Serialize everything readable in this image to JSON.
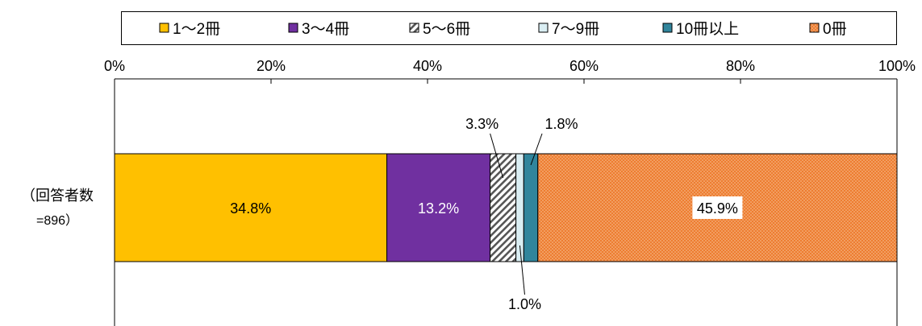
{
  "chart_data": {
    "type": "bar",
    "orientation": "horizontal",
    "stacked": true,
    "percent_scale": true,
    "category_label_line1": "（回答者数",
    "category_label_line2": "=896）",
    "xlim": [
      0,
      100
    ],
    "x_ticks": [
      "0%",
      "20%",
      "40%",
      "60%",
      "80%",
      "100%"
    ],
    "legend_placement": "top",
    "series": [
      {
        "name": "1～2冊",
        "value": 34.8,
        "label": "34.8%",
        "color": "#FFC000",
        "pattern": "solid",
        "label_position": "inside",
        "label_color": "#000000"
      },
      {
        "name": "3～4冊",
        "value": 13.2,
        "label": "13.2%",
        "color": "#7030A0",
        "pattern": "solid",
        "label_position": "inside",
        "label_color": "#ffffff"
      },
      {
        "name": "5～6冊",
        "value": 3.3,
        "label": "3.3%",
        "color": "#ffffff",
        "pattern": "diagonal-hatch",
        "label_position": "above-left",
        "label_color": "#000000"
      },
      {
        "name": "7～9冊",
        "value": 1.0,
        "label": "1.0%",
        "color": "#DAEEF3",
        "pattern": "solid",
        "label_position": "below",
        "label_color": "#000000"
      },
      {
        "name": "10冊以上",
        "value": 1.8,
        "label": "1.8%",
        "color": "#31859C",
        "pattern": "solid",
        "label_position": "above-right",
        "label_color": "#000000"
      },
      {
        "name": "0冊",
        "value": 45.9,
        "label": "45.9%",
        "color": "#F28C28",
        "pattern": "dotted",
        "label_position": "inside-boxed",
        "label_color": "#000000"
      }
    ]
  }
}
